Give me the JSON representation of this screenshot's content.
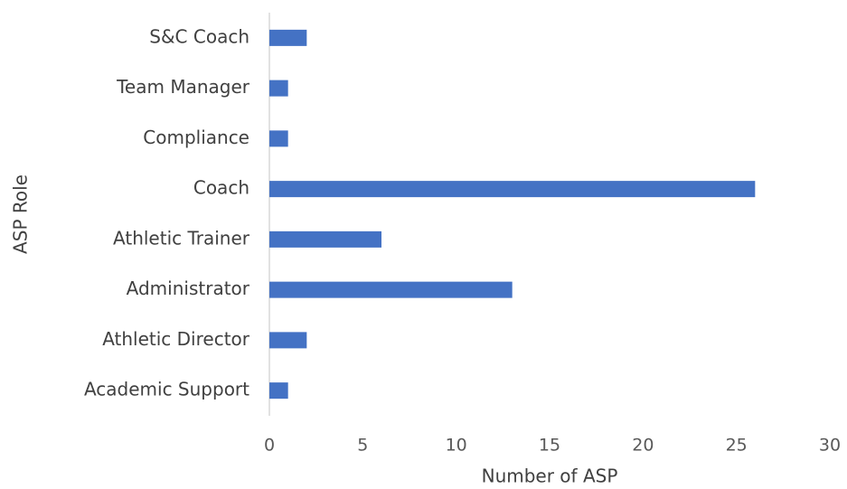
{
  "chart_data": {
    "type": "barh",
    "categories": [
      "S&C Coach",
      "Team Manager",
      "Compliance",
      "Coach",
      "Athletic Trainer",
      "Administrator",
      "Athletic Director",
      "Academic Support"
    ],
    "values": [
      2,
      1,
      1,
      26,
      6,
      13,
      2,
      1
    ],
    "color": "#4472c4",
    "xlabel": "Number of ASP",
    "ylabel": "ASP Role",
    "xlim": [
      0,
      30
    ],
    "xticks": [
      0,
      5,
      10,
      15,
      20,
      25,
      30
    ],
    "grid": false
  }
}
